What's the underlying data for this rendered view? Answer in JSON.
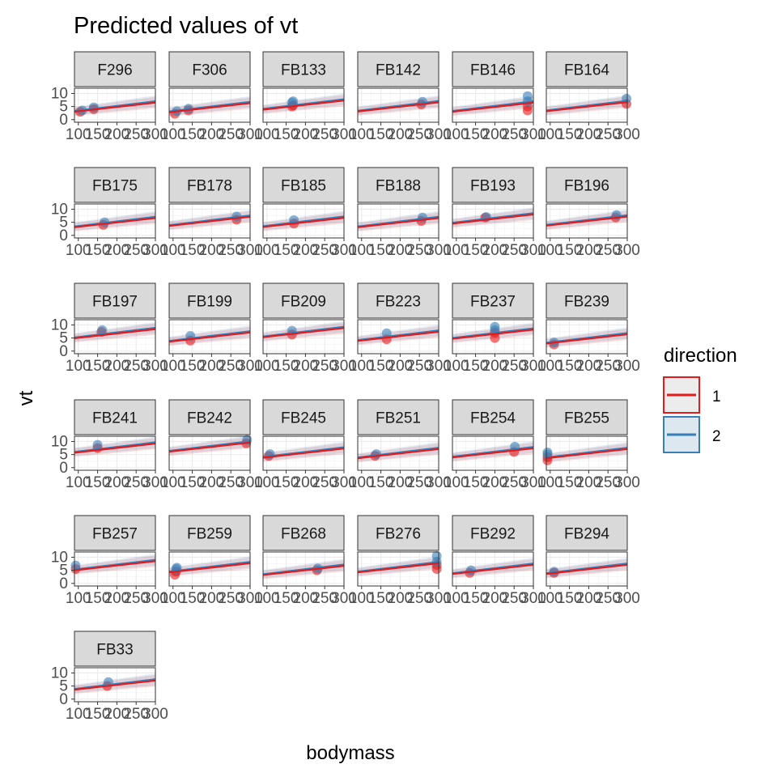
{
  "chart_data": {
    "type": "line",
    "title": "Predicted values of vt",
    "xlabel": "bodymass",
    "ylabel": "vt",
    "xlim": [
      90,
      300
    ],
    "ylim": [
      -1,
      12
    ],
    "x_ticks": [
      100,
      150,
      200,
      250,
      300
    ],
    "x_tick_labels": [
      "100",
      "150",
      "200",
      "250",
      "300"
    ],
    "y_ticks": [
      0,
      5,
      10
    ],
    "y_tick_labels": [
      "0",
      "5",
      "10"
    ],
    "grid": true,
    "legend": {
      "title": "direction",
      "position": "right",
      "entries": [
        {
          "label": "1",
          "color": "#e41a1c"
        },
        {
          "label": "2",
          "color": "#377eb8"
        }
      ]
    },
    "colors": {
      "direction_1": "#e41a1c",
      "direction_2": "#377eb8"
    },
    "panels": [
      {
        "id": "F296",
        "line1": [
          3.0,
          6.5
        ],
        "line2": [
          3.3,
          7.0
        ],
        "points1": [
          [
            105,
            3.0
          ],
          [
            140,
            4.0
          ]
        ],
        "points2": [
          [
            110,
            3.5
          ],
          [
            140,
            4.7
          ]
        ]
      },
      {
        "id": "F306",
        "line1": [
          2.8,
          6.3
        ],
        "line2": [
          3.1,
          6.8
        ],
        "points1": [
          [
            105,
            2.2
          ],
          [
            140,
            3.5
          ]
        ],
        "points2": [
          [
            110,
            3.2
          ],
          [
            140,
            4.2
          ]
        ]
      },
      {
        "id": "FB133",
        "line1": [
          3.8,
          7.3
        ],
        "line2": [
          4.1,
          7.8
        ],
        "points1": [
          [
            165,
            5.0
          ],
          [
            168,
            5.5
          ]
        ],
        "points2": [
          [
            165,
            6.5
          ],
          [
            168,
            7.0
          ]
        ]
      },
      {
        "id": "FB142",
        "line1": [
          3.1,
          6.6
        ],
        "line2": [
          3.4,
          7.1
        ],
        "points1": [
          [
            255,
            5.8
          ]
        ],
        "points2": [
          [
            258,
            6.8
          ]
        ]
      },
      {
        "id": "FB146",
        "line1": [
          3.0,
          6.5
        ],
        "line2": [
          3.3,
          7.0
        ],
        "points1": [
          [
            285,
            3.5
          ],
          [
            285,
            5.0
          ]
        ],
        "points2": [
          [
            285,
            7.0
          ],
          [
            285,
            9.0
          ]
        ]
      },
      {
        "id": "FB164",
        "line1": [
          3.2,
          6.7
        ],
        "line2": [
          3.5,
          7.2
        ],
        "points1": [
          [
            298,
            6.0
          ]
        ],
        "points2": [
          [
            298,
            8.0
          ]
        ]
      },
      {
        "id": "FB175",
        "line1": [
          3.1,
          6.6
        ],
        "line2": [
          3.4,
          7.1
        ],
        "points1": [
          [
            165,
            4.0
          ]
        ],
        "points2": [
          [
            168,
            5.0
          ]
        ]
      },
      {
        "id": "FB178",
        "line1": [
          3.6,
          7.1
        ],
        "line2": [
          3.9,
          7.6
        ],
        "points1": [
          [
            265,
            6.0
          ]
        ],
        "points2": [
          [
            265,
            7.2
          ]
        ]
      },
      {
        "id": "FB185",
        "line1": [
          3.2,
          6.7
        ],
        "line2": [
          3.5,
          7.2
        ],
        "points1": [
          [
            170,
            4.5
          ]
        ],
        "points2": [
          [
            170,
            5.8
          ]
        ]
      },
      {
        "id": "FB188",
        "line1": [
          3.1,
          6.6
        ],
        "line2": [
          3.4,
          7.1
        ],
        "points1": [
          [
            255,
            5.5
          ]
        ],
        "points2": [
          [
            258,
            6.8
          ]
        ]
      },
      {
        "id": "FB193",
        "line1": [
          4.5,
          8.0
        ],
        "line2": [
          4.8,
          8.5
        ],
        "points1": [
          [
            175,
            6.8
          ]
        ],
        "points2": [
          [
            178,
            7.0
          ]
        ]
      },
      {
        "id": "FB196",
        "line1": [
          3.7,
          7.2
        ],
        "line2": [
          4.0,
          7.7
        ],
        "points1": [
          [
            270,
            6.8
          ]
        ],
        "points2": [
          [
            272,
            7.8
          ]
        ]
      },
      {
        "id": "FB197",
        "line1": [
          4.9,
          8.4
        ],
        "line2": [
          5.2,
          8.9
        ],
        "points1": [
          [
            160,
            7.3
          ]
        ],
        "points2": [
          [
            162,
            8.0
          ]
        ]
      },
      {
        "id": "FB199",
        "line1": [
          3.6,
          7.1
        ],
        "line2": [
          3.9,
          7.6
        ],
        "points1": [
          [
            145,
            4.0
          ]
        ],
        "points2": [
          [
            145,
            5.8
          ]
        ]
      },
      {
        "id": "FB209",
        "line1": [
          5.3,
          8.8
        ],
        "line2": [
          5.6,
          9.3
        ],
        "points1": [
          [
            165,
            6.3
          ]
        ],
        "points2": [
          [
            165,
            7.8
          ]
        ]
      },
      {
        "id": "FB223",
        "line1": [
          3.9,
          7.4
        ],
        "line2": [
          4.2,
          7.9
        ],
        "points1": [
          [
            165,
            4.5
          ]
        ],
        "points2": [
          [
            165,
            6.8
          ]
        ]
      },
      {
        "id": "FB237",
        "line1": [
          4.7,
          8.2
        ],
        "line2": [
          5.0,
          8.7
        ],
        "points1": [
          [
            200,
            5.0
          ],
          [
            200,
            7.0
          ]
        ],
        "points2": [
          [
            200,
            8.0
          ],
          [
            200,
            9.3
          ]
        ]
      },
      {
        "id": "FB239",
        "line1": [
          2.9,
          6.4
        ],
        "line2": [
          3.2,
          6.9
        ],
        "points1": [
          [
            110,
            2.5
          ]
        ],
        "points2": [
          [
            110,
            3.3
          ]
        ]
      },
      {
        "id": "FB241",
        "line1": [
          5.7,
          9.2
        ],
        "line2": [
          6.0,
          9.7
        ],
        "points1": [
          [
            150,
            7.5
          ]
        ],
        "points2": [
          [
            150,
            8.7
          ]
        ]
      },
      {
        "id": "FB242",
        "line1": [
          6.1,
          9.6
        ],
        "line2": [
          6.4,
          10.1
        ],
        "points1": [
          [
            290,
            9.3
          ]
        ],
        "points2": [
          [
            292,
            10.6
          ]
        ]
      },
      {
        "id": "FB245",
        "line1": [
          3.8,
          7.3
        ],
        "line2": [
          4.1,
          7.8
        ],
        "points1": [
          [
            105,
            4.5
          ]
        ],
        "points2": [
          [
            108,
            5.2
          ]
        ]
      },
      {
        "id": "FB251",
        "line1": [
          3.6,
          7.1
        ],
        "line2": [
          3.9,
          7.6
        ],
        "points1": [
          [
            135,
            4.5
          ]
        ],
        "points2": [
          [
            138,
            5.2
          ]
        ]
      },
      {
        "id": "FB254",
        "line1": [
          3.9,
          7.4
        ],
        "line2": [
          4.2,
          7.9
        ],
        "points1": [
          [
            250,
            6.0
          ]
        ],
        "points2": [
          [
            252,
            8.0
          ]
        ]
      },
      {
        "id": "FB255",
        "line1": [
          3.6,
          7.1
        ],
        "line2": [
          3.9,
          7.6
        ],
        "points1": [
          [
            93,
            2.8
          ],
          [
            93,
            4.0
          ]
        ],
        "points2": [
          [
            93,
            5.0
          ],
          [
            93,
            5.8
          ]
        ]
      },
      {
        "id": "FB257",
        "line1": [
          5.0,
          8.5
        ],
        "line2": [
          5.3,
          9.0
        ],
        "points1": [
          [
            93,
            5.5
          ]
        ],
        "points2": [
          [
            93,
            6.8
          ]
        ]
      },
      {
        "id": "FB259",
        "line1": [
          4.2,
          7.7
        ],
        "line2": [
          4.5,
          8.2
        ],
        "points1": [
          [
            105,
            3.3
          ],
          [
            108,
            4.5
          ]
        ],
        "points2": [
          [
            108,
            5.5
          ],
          [
            110,
            6.0
          ]
        ]
      },
      {
        "id": "FB268",
        "line1": [
          3.2,
          6.7
        ],
        "line2": [
          3.5,
          7.2
        ],
        "points1": [
          [
            230,
            5.0
          ]
        ],
        "points2": [
          [
            232,
            5.7
          ]
        ]
      },
      {
        "id": "FB276",
        "line1": [
          4.2,
          7.7
        ],
        "line2": [
          4.5,
          8.2
        ],
        "points1": [
          [
            295,
            5.5
          ],
          [
            295,
            7.0
          ]
        ],
        "points2": [
          [
            295,
            8.3
          ],
          [
            295,
            10.5
          ]
        ]
      },
      {
        "id": "FB292",
        "line1": [
          3.6,
          7.1
        ],
        "line2": [
          3.9,
          7.6
        ],
        "points1": [
          [
            135,
            4.0
          ]
        ],
        "points2": [
          [
            138,
            5.0
          ]
        ]
      },
      {
        "id": "FB294",
        "line1": [
          3.6,
          7.1
        ],
        "line2": [
          3.9,
          7.6
        ],
        "points1": [
          [
            110,
            4.0
          ]
        ],
        "points2": [
          [
            110,
            4.5
          ]
        ]
      },
      {
        "id": "FB33",
        "line1": [
          3.6,
          7.1
        ],
        "line2": [
          3.9,
          7.6
        ],
        "points1": [
          [
            175,
            5.0
          ]
        ],
        "points2": [
          [
            178,
            6.5
          ]
        ]
      }
    ]
  }
}
